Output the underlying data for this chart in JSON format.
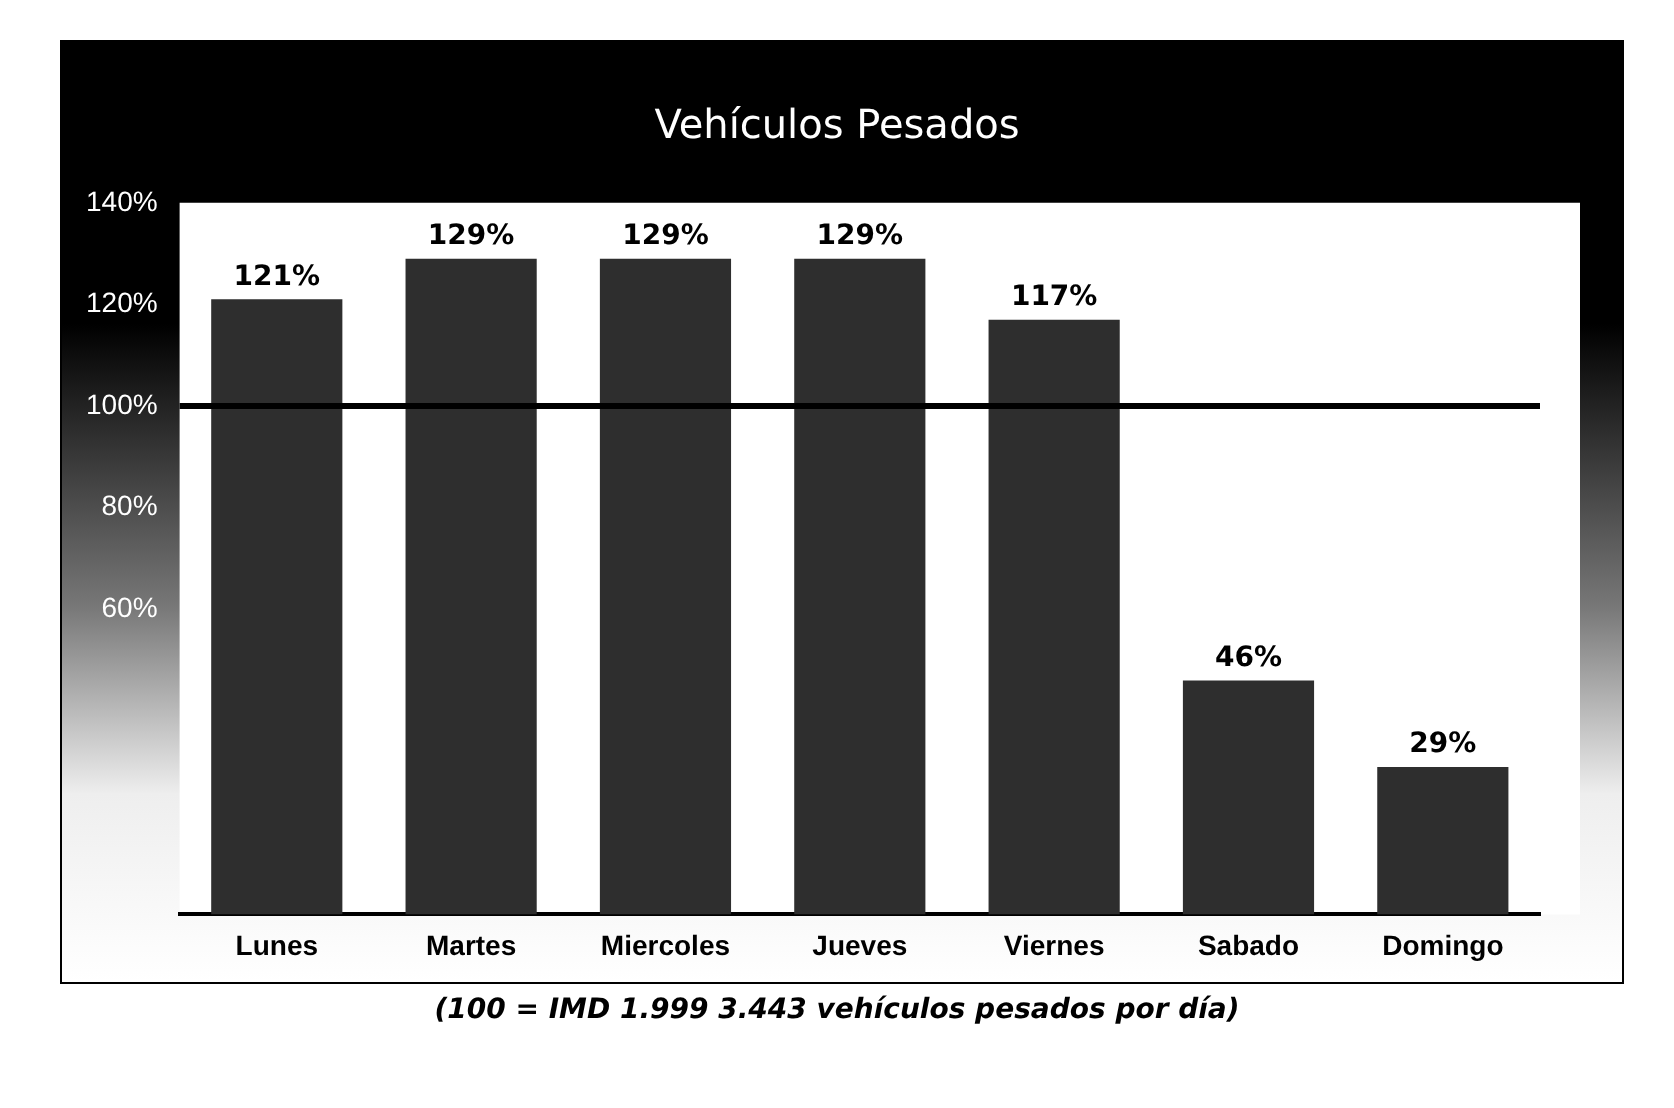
{
  "chart_data": {
    "type": "bar",
    "title": "Vehículos Pesados",
    "categories": [
      "Lunes",
      "Martes",
      "Miercoles",
      "Jueves",
      "Viernes",
      "Sabado",
      "Domingo"
    ],
    "values": [
      121,
      129,
      129,
      129,
      117,
      46,
      29
    ],
    "color": "#2e2e2e",
    "value_labels": [
      "121%",
      "129%",
      "129%",
      "129%",
      "117%",
      "46%",
      "29%"
    ],
    "ylim": [
      0,
      140
    ],
    "yticks": [
      {
        "value": 60,
        "label": "60%"
      },
      {
        "value": 80,
        "label": "80%"
      },
      {
        "value": 100,
        "label": "100%"
      },
      {
        "value": 120,
        "label": "120%"
      },
      {
        "value": 140,
        "label": "140%"
      }
    ],
    "ref_lines": [
      {
        "axis": "y",
        "value": 100,
        "label": null,
        "color": "#000000"
      }
    ],
    "annotations": [
      "(100 = IMD 1.999  3.443  vehículos pesados por día)"
    ],
    "grid": false,
    "legend": false
  }
}
